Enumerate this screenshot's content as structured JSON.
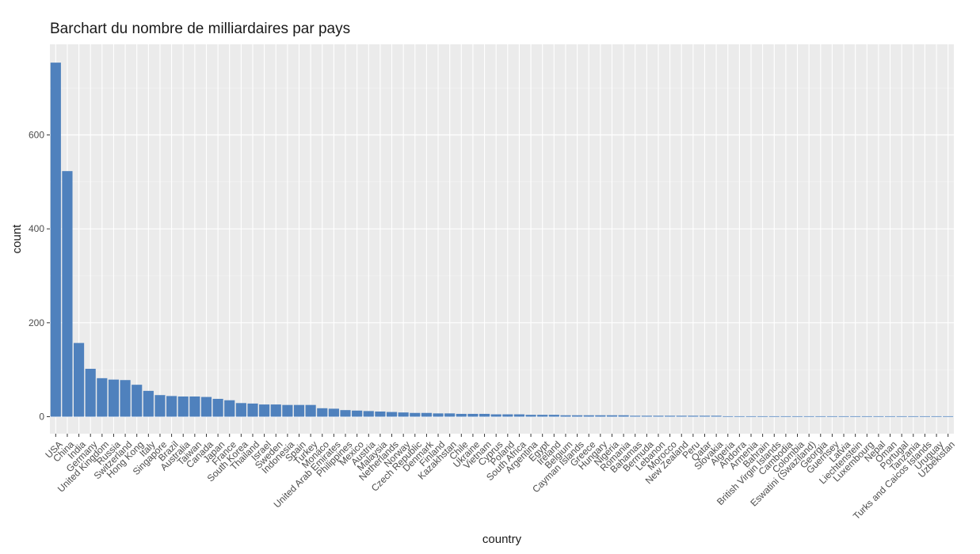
{
  "chart_data": {
    "type": "bar",
    "title": "Barchart du nombre de milliardaires par pays",
    "xlabel": "country",
    "ylabel": "count",
    "ylim": [
      0,
      770
    ],
    "yticks": [
      0,
      200,
      400,
      600
    ],
    "grid": true,
    "bar_color": "#4F81BD",
    "panel_color": "#EBEBEB",
    "categories": [
      "USA",
      "China",
      "India",
      "Germany",
      "United Kingdom",
      "Russia",
      "Switzerland",
      "Hong Kong",
      "Italy",
      "Singapore",
      "Brazil",
      "Australia",
      "Taiwan",
      "Canada",
      "Japan",
      "France",
      "South Korea",
      "Thailand",
      "Israel",
      "Sweden",
      "Indonesia",
      "Spain",
      "Turkey",
      "Monaco",
      "United Arab Emirates",
      "Philippines",
      "Mexico",
      "Austria",
      "Malaysia",
      "Netherlands",
      "Norway",
      "Czech Republic",
      "Denmark",
      "Finland",
      "Kazakhstan",
      "Chile",
      "Ukraine",
      "Vietnam",
      "Cyprus",
      "Poland",
      "South Africa",
      "Argentina",
      "Egypt",
      "Ireland",
      "Belgium",
      "Cayman Islands",
      "Greece",
      "Hungary",
      "Nigeria",
      "Romania",
      "Bahamas",
      "Bermuda",
      "Lebanon",
      "Morocco",
      "New Zealand",
      "Peru",
      "Qatar",
      "Slovakia",
      "Algeria",
      "Andorra",
      "Armenia",
      "Bahrain",
      "British Virgin Islands",
      "Cambodia",
      "Colombia",
      "Eswatini (Swaziland)",
      "Georgia",
      "Guernsey",
      "Latvia",
      "Liechtenstein",
      "Luxembourg",
      "Nepal",
      "Oman",
      "Portugal",
      "Tanzania",
      "Turks and Caicos Islands",
      "Uruguay",
      "Uzbekistan"
    ],
    "values": [
      754,
      523,
      157,
      102,
      82,
      79,
      78,
      68,
      55,
      46,
      44,
      43,
      43,
      42,
      38,
      35,
      29,
      28,
      26,
      26,
      25,
      25,
      25,
      18,
      17,
      14,
      13,
      12,
      11,
      10,
      9,
      8,
      8,
      7,
      7,
      6,
      6,
      6,
      5,
      5,
      5,
      4,
      4,
      4,
      3,
      3,
      3,
      3,
      3,
      3,
      2,
      2,
      2,
      2,
      2,
      2,
      2,
      2,
      1,
      1,
      1,
      1,
      1,
      1,
      1,
      1,
      1,
      1,
      1,
      1,
      1,
      1,
      1,
      1,
      1,
      1,
      1,
      1
    ]
  }
}
